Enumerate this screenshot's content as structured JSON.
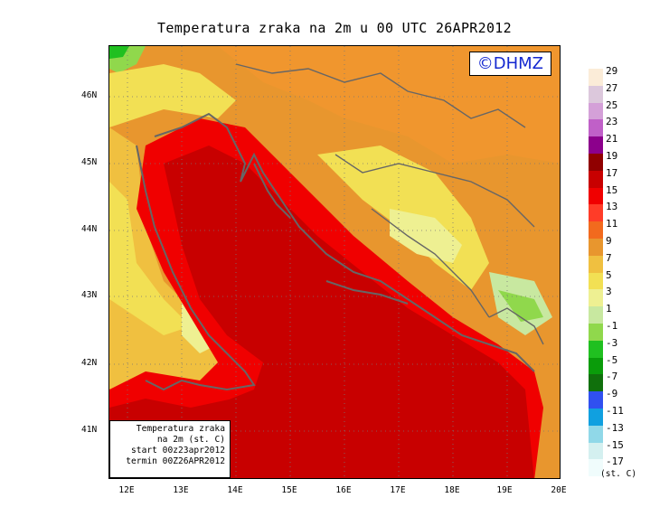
{
  "title": "Temperatura zraka na 2m u 00 UTC 26APR2012",
  "logo": "©DHMZ",
  "info_box": [
    "Temperatura zraka",
    "na 2m (st. C)",
    "start 00z23apr2012",
    "termin 00Z26APR2012"
  ],
  "lat_labels": [
    "46N",
    "45N",
    "44N",
    "43N",
    "42N",
    "41N"
  ],
  "lon_labels": [
    "12E",
    "13E",
    "14E",
    "15E",
    "16E",
    "17E",
    "18E",
    "19E",
    "20E"
  ],
  "legend": {
    "labels": [
      "29",
      "27",
      "25",
      "23",
      "21",
      "19",
      "17",
      "15",
      "13",
      "11",
      "9",
      "7",
      "5",
      "3",
      "1",
      "-1",
      "-3",
      "-5",
      "-7",
      "-9",
      "-11",
      "-13",
      "-15",
      "-17"
    ],
    "colors": [
      "#fbecd8",
      "#dcc8dc",
      "#d4a0d8",
      "#c060c8",
      "#8c008c",
      "#900000",
      "#c80000",
      "#f00000",
      "#ff3c28",
      "#f26a1e",
      "#e8962e",
      "#f0c040",
      "#f2e054",
      "#eef092",
      "#c8e8a0",
      "#90d84c",
      "#20c020",
      "#0a9c0a",
      "#10700c",
      "#3050f0",
      "#10a0e0",
      "#90d8e8",
      "#d4f0f0",
      "#f0fcfc"
    ],
    "unit": "(st. C)"
  },
  "colors": {
    "sea": "#c80000",
    "coast_red": "#f00000",
    "land_orange": "#f0962e",
    "land_yellow": "#f2e054",
    "cold_green": "#90d84c",
    "coastline": "#666666",
    "logo_text": "#1428d0"
  }
}
